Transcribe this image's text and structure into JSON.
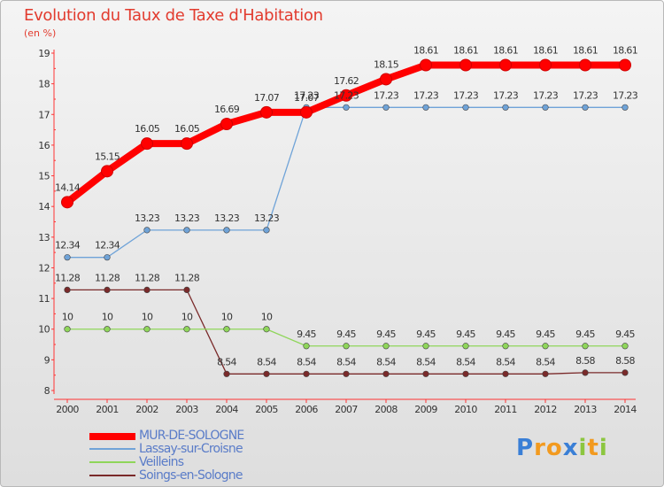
{
  "header": {
    "title": "Evolution du Taux de Taxe d'Habitation",
    "subtitle": "(en %)"
  },
  "chart_data": {
    "type": "line",
    "title": "Evolution du Taux de Taxe d'Habitation",
    "xlabel": "",
    "ylabel": "(en %)",
    "categories": [
      "2000",
      "2001",
      "2002",
      "2003",
      "2004",
      "2005",
      "2006",
      "2007",
      "2008",
      "2009",
      "2010",
      "2011",
      "2012",
      "2013",
      "2014"
    ],
    "ylim": [
      8,
      19
    ],
    "yticks": [
      "8",
      "9",
      "10",
      "11",
      "12",
      "13",
      "14",
      "15",
      "16",
      "17",
      "18",
      "19"
    ],
    "grid": false,
    "legend_position": "bottom-left",
    "series": [
      {
        "name": "MUR-DE-SOLOGNE",
        "color": "#ff0000",
        "values": [
          14.14,
          15.15,
          16.05,
          16.05,
          16.69,
          17.07,
          17.07,
          17.62,
          18.15,
          18.61,
          18.61,
          18.61,
          18.61,
          18.61,
          18.61
        ],
        "labels": [
          "14.14",
          "15.15",
          "16.05",
          "16.05",
          "16.69",
          "17.07",
          "17.07",
          "17.62",
          "18.15",
          "18.61",
          "18.61",
          "18.61",
          "18.61",
          "18.61",
          "18.61"
        ]
      },
      {
        "name": "Lassay-sur-Croisne",
        "color": "#6fa3d8",
        "values": [
          12.34,
          12.34,
          13.23,
          13.23,
          13.23,
          13.23,
          17.23,
          17.23,
          17.23,
          17.23,
          17.23,
          17.23,
          17.23,
          17.23,
          17.23
        ],
        "labels": [
          "12.34",
          "12.34",
          "13.23",
          "13.23",
          "13.23",
          "13.23",
          "17.23",
          "17.23",
          "17.23",
          "17.23",
          "17.23",
          "17.23",
          "17.23",
          "17.23",
          "17.23"
        ]
      },
      {
        "name": "Veilleins",
        "color": "#8fd65a",
        "values": [
          10,
          10,
          10,
          10,
          10,
          10,
          9.45,
          9.45,
          9.45,
          9.45,
          9.45,
          9.45,
          9.45,
          9.45,
          9.45
        ],
        "labels": [
          "10",
          "10",
          "10",
          "10",
          "10",
          "10",
          "9.45",
          "9.45",
          "9.45",
          "9.45",
          "9.45",
          "9.45",
          "9.45",
          "9.45",
          "9.45"
        ]
      },
      {
        "name": "Soings-en-Sologne",
        "color": "#7a2a2a",
        "values": [
          11.28,
          11.28,
          11.28,
          11.28,
          8.54,
          8.54,
          8.54,
          8.54,
          8.54,
          8.54,
          8.54,
          8.54,
          8.54,
          8.58,
          8.58
        ],
        "labels": [
          "11.28",
          "11.28",
          "11.28",
          "11.28",
          "8.54",
          "8.54",
          "8.54",
          "8.54",
          "8.54",
          "8.54",
          "8.54",
          "8.54",
          "8.54",
          "8.58",
          "8.58"
        ]
      }
    ]
  },
  "branding": {
    "letters": [
      "P",
      "r",
      "o",
      "x",
      "i",
      "t",
      "i"
    ],
    "colors": [
      "#3a7fd6",
      "#f29a1f",
      "#f29a1f",
      "#3a7fd6",
      "#8cc63f",
      "#f29a1f",
      "#8cc63f"
    ]
  }
}
